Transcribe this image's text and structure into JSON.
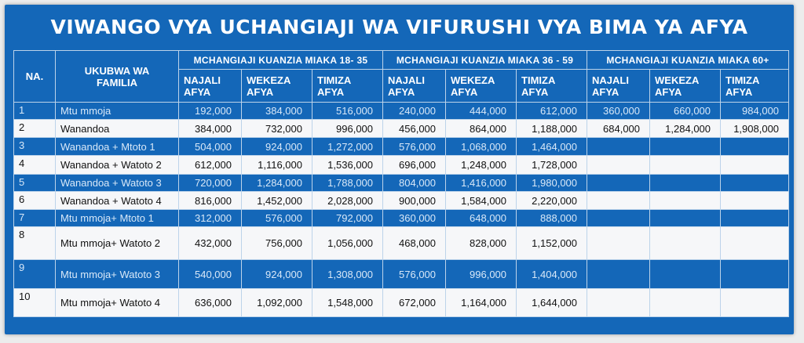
{
  "title": "VIWANGO VYA UCHANGIAJI WA VIFURUSHI VYA BIMA YA AFYA",
  "headers": {
    "no": "NA.",
    "family": "UKUBWA WA FAMILIA",
    "groups": [
      "MCHANGIAJI KUANZIA MIAKA 18- 35",
      "MCHANGIAJI KUANZIA MIAKA 36 - 59",
      "MCHANGIAJI KUANZIA MIAKA 60+"
    ],
    "plans": [
      "NAJALI AFYA",
      "WEKEZA AFYA",
      "TIMIZA AFYA",
      "NAJALI AFYA",
      "WEKEZA AFYA",
      "TIMIZA AFYA",
      "NAJALI AFYA",
      "WEKEZA AFYA",
      "TIMIZA AFYA"
    ]
  },
  "rows": [
    {
      "no": "1",
      "family": "Mtu mmoja",
      "values": [
        "192,000",
        "384,000",
        "516,000",
        "240,000",
        "444,000",
        "612,000",
        "360,000",
        "660,000",
        "984,000"
      ]
    },
    {
      "no": "2",
      "family": "Wanandoa",
      "values": [
        "384,000",
        "732,000",
        "996,000",
        "456,000",
        "864,000",
        "1,188,000",
        "684,000",
        "1,284,000",
        "1,908,000"
      ]
    },
    {
      "no": "3",
      "family": "Wanandoa + Mtoto 1",
      "values": [
        "504,000",
        "924,000",
        "1,272,000",
        "576,000",
        "1,068,000",
        "1,464,000",
        "",
        "",
        ""
      ]
    },
    {
      "no": "4",
      "family": "Wanandoa + Watoto 2",
      "values": [
        "612,000",
        "1,116,000",
        "1,536,000",
        "696,000",
        "1,248,000",
        "1,728,000",
        "",
        "",
        ""
      ]
    },
    {
      "no": "5",
      "family": "Wanandoa + Watoto 3",
      "values": [
        "720,000",
        "1,284,000",
        "1,788,000",
        "804,000",
        "1,416,000",
        "1,980,000",
        "",
        "",
        ""
      ]
    },
    {
      "no": "6",
      "family": "Wanandoa + Watoto 4",
      "values": [
        "816,000",
        "1,452,000",
        "2,028,000",
        "900,000",
        "1,584,000",
        "2,220,000",
        "",
        "",
        ""
      ]
    },
    {
      "no": "7",
      "family": "Mtu mmoja+ Mtoto 1",
      "values": [
        "312,000",
        "576,000",
        "792,000",
        "360,000",
        "648,000",
        "888,000",
        "",
        "",
        ""
      ]
    },
    {
      "no": "8",
      "family": "Mtu mmoja+ Watoto 2",
      "values": [
        "432,000",
        "756,000",
        "1,056,000",
        "468,000",
        "828,000",
        "1,152,000",
        "",
        "",
        ""
      ]
    },
    {
      "no": "9",
      "family": "Mtu mmoja+ Watoto 3",
      "values": [
        "540,000",
        "924,000",
        "1,308,000",
        "576,000",
        "996,000",
        "1,404,000",
        "",
        "",
        ""
      ]
    },
    {
      "no": "10",
      "family": "Mtu mmoja+ Watoto 4",
      "values": [
        "636,000",
        "1,092,000",
        "1,548,000",
        "672,000",
        "1,164,000",
        "1,644,000",
        "",
        "",
        ""
      ]
    }
  ]
}
